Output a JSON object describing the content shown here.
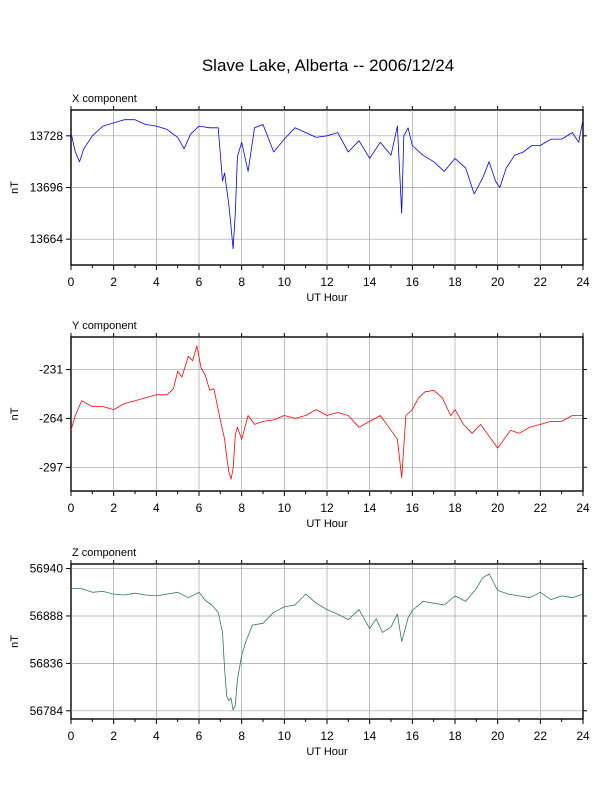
{
  "title": "Slave Lake, Alberta -- 2006/12/24",
  "chart_data": [
    {
      "type": "line",
      "panel_title": "X component",
      "xlabel": "UT Hour",
      "ylabel": "nT",
      "xlim": [
        0,
        24
      ],
      "ylim": [
        13648,
        13744
      ],
      "xticks": [
        0,
        2,
        4,
        6,
        8,
        10,
        12,
        14,
        16,
        18,
        20,
        22,
        24
      ],
      "yticks": [
        13664,
        13696,
        13728
      ],
      "grid": true,
      "color": "#0000ff",
      "x": [
        0,
        0.2,
        0.4,
        0.6,
        0.8,
        1.0,
        1.5,
        2.0,
        2.5,
        3.0,
        3.5,
        4.0,
        4.5,
        5.0,
        5.3,
        5.6,
        6.0,
        6.5,
        6.9,
        7.1,
        7.2,
        7.3,
        7.4,
        7.5,
        7.6,
        7.7,
        7.8,
        8.0,
        8.3,
        8.6,
        9.0,
        9.5,
        10.0,
        10.5,
        11.0,
        11.5,
        12.0,
        12.5,
        13.0,
        13.5,
        14.0,
        14.5,
        15.0,
        15.3,
        15.5,
        15.6,
        15.8,
        16.0,
        16.5,
        17.0,
        17.5,
        18.0,
        18.5,
        18.9,
        19.3,
        19.6,
        19.9,
        20.1,
        20.4,
        20.8,
        21.2,
        21.6,
        22.0,
        22.5,
        23.0,
        23.5,
        23.8,
        24.0
      ],
      "y": [
        13730,
        13718,
        13712,
        13720,
        13724,
        13728,
        13734,
        13736,
        13738,
        13738,
        13735,
        13734,
        13732,
        13727,
        13720,
        13729,
        13734,
        13733,
        13733,
        13700,
        13705,
        13695,
        13685,
        13672,
        13658,
        13680,
        13715,
        13724,
        13706,
        13733,
        13735,
        13718,
        13726,
        13733,
        13730,
        13727,
        13728,
        13730,
        13718,
        13725,
        13714,
        13724,
        13716,
        13734,
        13680,
        13728,
        13733,
        13722,
        13716,
        13712,
        13706,
        13714,
        13708,
        13692,
        13702,
        13712,
        13700,
        13696,
        13708,
        13716,
        13718,
        13722,
        13722,
        13726,
        13726,
        13730,
        13724,
        13738
      ]
    },
    {
      "type": "line",
      "panel_title": "Y component",
      "xlabel": "UT Hour",
      "ylabel": "nT",
      "xlim": [
        0,
        24
      ],
      "ylim": [
        -313,
        -209
      ],
      "xticks": [
        0,
        2,
        4,
        6,
        8,
        10,
        12,
        14,
        16,
        18,
        20,
        22,
        24
      ],
      "yticks": [
        -297,
        -264,
        -231
      ],
      "grid": true,
      "color": "#ff0000",
      "x": [
        0,
        0.2,
        0.5,
        1.0,
        1.5,
        2.0,
        2.5,
        3.0,
        3.5,
        4.0,
        4.5,
        4.8,
        5.0,
        5.2,
        5.5,
        5.7,
        5.9,
        6.1,
        6.3,
        6.5,
        6.7,
        7.0,
        7.2,
        7.3,
        7.4,
        7.5,
        7.6,
        7.7,
        7.8,
        8.0,
        8.3,
        8.6,
        9.0,
        9.5,
        10.0,
        10.5,
        11.0,
        11.5,
        12.0,
        12.5,
        13.0,
        13.5,
        14.0,
        14.5,
        15.0,
        15.3,
        15.5,
        15.7,
        16.0,
        16.3,
        16.6,
        17.0,
        17.4,
        17.8,
        18.0,
        18.4,
        18.8,
        19.2,
        19.6,
        20.0,
        20.3,
        20.6,
        21.0,
        21.5,
        22.0,
        22.5,
        23.0,
        23.5,
        24.0
      ],
      "y": [
        -272,
        -262,
        -252,
        -256,
        -256,
        -258,
        -254,
        -252,
        -250,
        -248,
        -248,
        -244,
        -232,
        -236,
        -222,
        -225,
        -215,
        -230,
        -235,
        -245,
        -244,
        -265,
        -278,
        -290,
        -300,
        -305,
        -298,
        -275,
        -270,
        -278,
        -262,
        -268,
        -266,
        -265,
        -262,
        -264,
        -262,
        -258,
        -262,
        -260,
        -262,
        -270,
        -266,
        -262,
        -272,
        -278,
        -304,
        -262,
        -258,
        -250,
        -246,
        -245,
        -250,
        -262,
        -258,
        -268,
        -274,
        -268,
        -276,
        -284,
        -278,
        -272,
        -274,
        -270,
        -268,
        -266,
        -266,
        -262,
        -262
      ]
    },
    {
      "type": "line",
      "panel_title": "Z component",
      "xlabel": "UT Hour",
      "ylabel": "nT",
      "xlim": [
        0,
        24
      ],
      "ylim": [
        56775,
        56945
      ],
      "xticks": [
        0,
        2,
        4,
        6,
        8,
        10,
        12,
        14,
        16,
        18,
        20,
        22,
        24
      ],
      "yticks": [
        56784,
        56836,
        56888,
        56940
      ],
      "grid": true,
      "color": "#2e7d4f",
      "x": [
        0,
        0.5,
        1.0,
        1.5,
        2.0,
        2.5,
        3.0,
        3.5,
        4.0,
        4.5,
        5.0,
        5.5,
        6.0,
        6.3,
        6.6,
        6.9,
        7.1,
        7.2,
        7.3,
        7.4,
        7.5,
        7.6,
        7.7,
        7.8,
        8.0,
        8.2,
        8.5,
        9.0,
        9.5,
        10.0,
        10.5,
        11.0,
        11.5,
        12.0,
        12.5,
        13.0,
        13.5,
        14.0,
        14.3,
        14.6,
        15.0,
        15.3,
        15.5,
        15.8,
        16.0,
        16.5,
        17.0,
        17.5,
        18.0,
        18.5,
        19.0,
        19.3,
        19.6,
        20.0,
        20.5,
        21.0,
        21.5,
        22.0,
        22.5,
        23.0,
        23.5,
        24.0
      ],
      "y": [
        56918,
        56918,
        56914,
        56915,
        56912,
        56911,
        56913,
        56911,
        56910,
        56912,
        56914,
        56908,
        56914,
        56905,
        56900,
        56892,
        56870,
        56830,
        56800,
        56795,
        56798,
        56785,
        56790,
        56818,
        56845,
        56860,
        56878,
        56880,
        56892,
        56898,
        56900,
        56912,
        56902,
        56895,
        56890,
        56884,
        56895,
        56874,
        56885,
        56870,
        56876,
        56890,
        56860,
        56886,
        56894,
        56904,
        56902,
        56900,
        56910,
        56904,
        56918,
        56930,
        56934,
        56916,
        56912,
        56910,
        56908,
        56914,
        56906,
        56910,
        56908,
        56912
      ]
    }
  ]
}
